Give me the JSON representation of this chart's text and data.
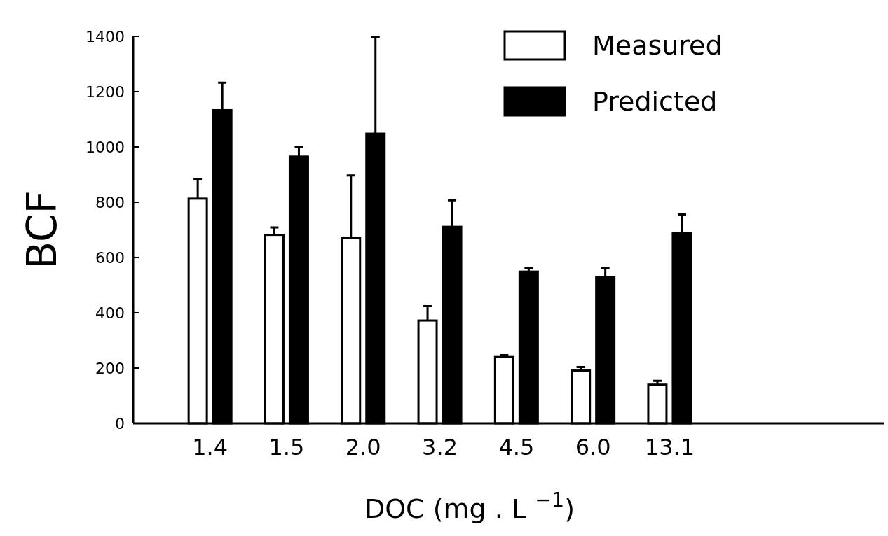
{
  "chart_data": {
    "type": "bar",
    "xlabel": "DOC (mg . L $^{−1}$)",
    "ylabel": "BCF",
    "categories": [
      "1.4",
      "1.5",
      "2.0",
      "3.2",
      "4.5",
      "6.0",
      "13.1"
    ],
    "series": [
      {
        "name": "Measured",
        "color": "#ffffff",
        "values": [
          813,
          682,
          670,
          372,
          240,
          191,
          140
        ],
        "errors": [
          [
            813,
            885
          ],
          [
            682,
            709
          ],
          [
            670,
            897
          ],
          [
            372,
            424
          ],
          [
            240,
            247
          ],
          [
            191,
            204
          ],
          [
            140,
            154
          ]
        ]
      },
      {
        "name": "Predicted",
        "color": "#000000",
        "values": [
          1133,
          965,
          1048,
          711,
          549,
          530,
          688
        ],
        "errors": [
          [
            1133,
            1232
          ],
          [
            965,
            1000
          ],
          [
            1048,
            1399
          ],
          [
            711,
            807
          ],
          [
            549,
            561
          ],
          [
            530,
            561
          ],
          [
            688,
            756
          ]
        ]
      }
    ],
    "ylim": [
      0,
      1400
    ],
    "yticks": [
      0,
      200,
      400,
      600,
      800,
      1000,
      1200,
      1400
    ],
    "legend": "top right",
    "grid": false
  }
}
